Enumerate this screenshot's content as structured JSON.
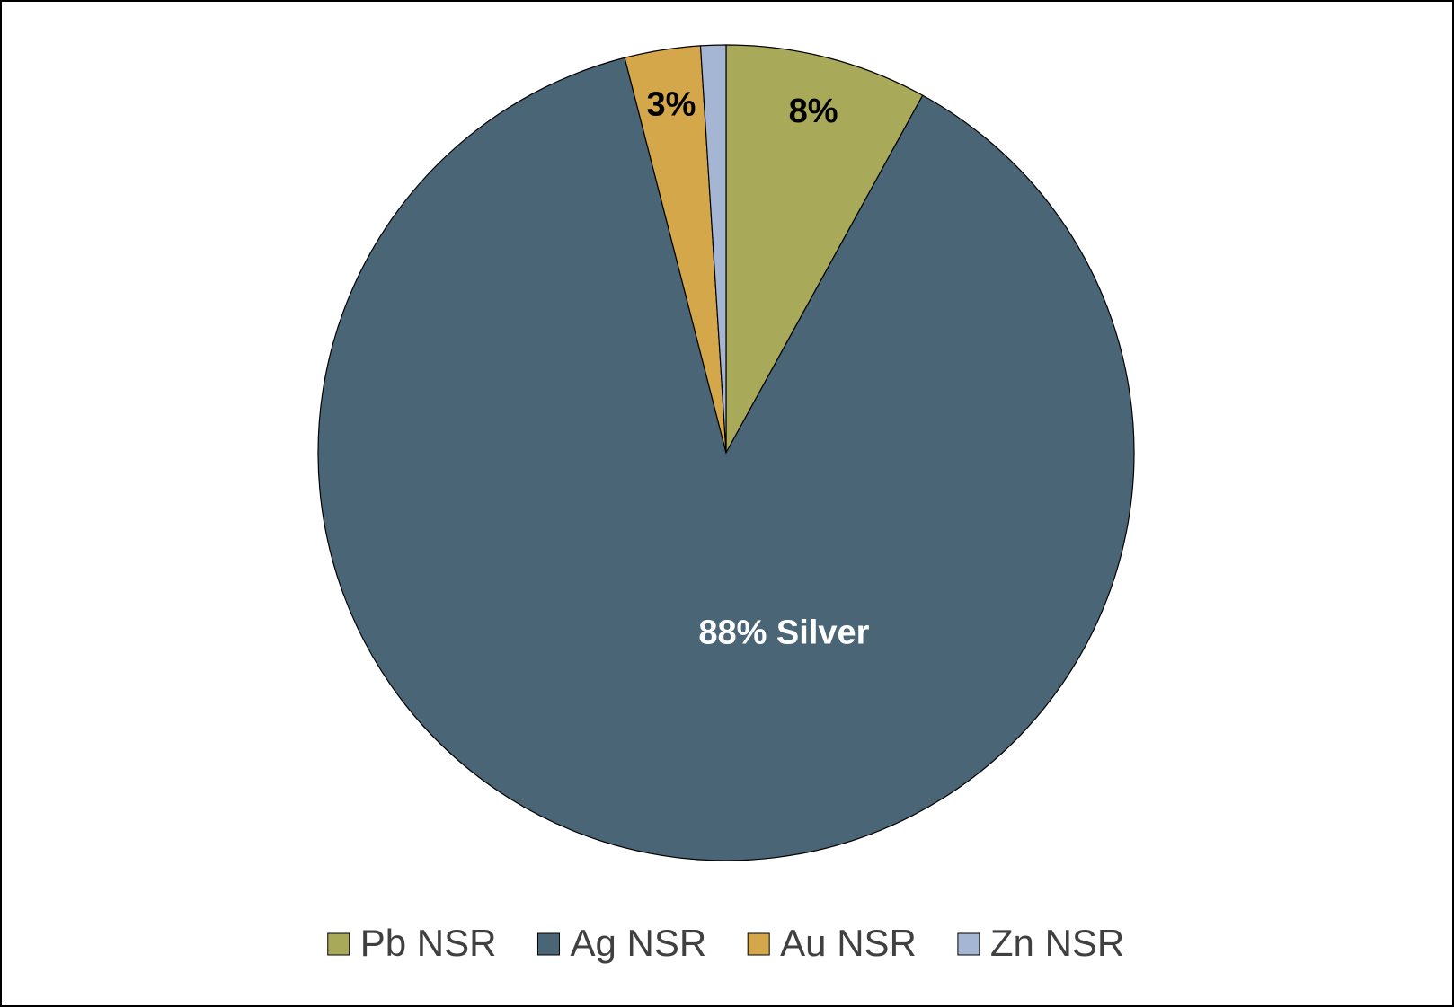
{
  "chart_data": {
    "type": "pie",
    "categories": [
      "Pb NSR",
      "Ag NSR",
      "Au NSR",
      "Zn NSR"
    ],
    "values": [
      8,
      88,
      3,
      1
    ],
    "value_labels": [
      "8%",
      "88%  Silver",
      "3%",
      null
    ],
    "colors": [
      "#a9a95a",
      "#4a6576",
      "#d4a74a",
      "#a5b6d4"
    ],
    "label_colors": [
      "#000000",
      "#ffffff",
      "#000000",
      "#000000"
    ],
    "legend": "bottom"
  }
}
